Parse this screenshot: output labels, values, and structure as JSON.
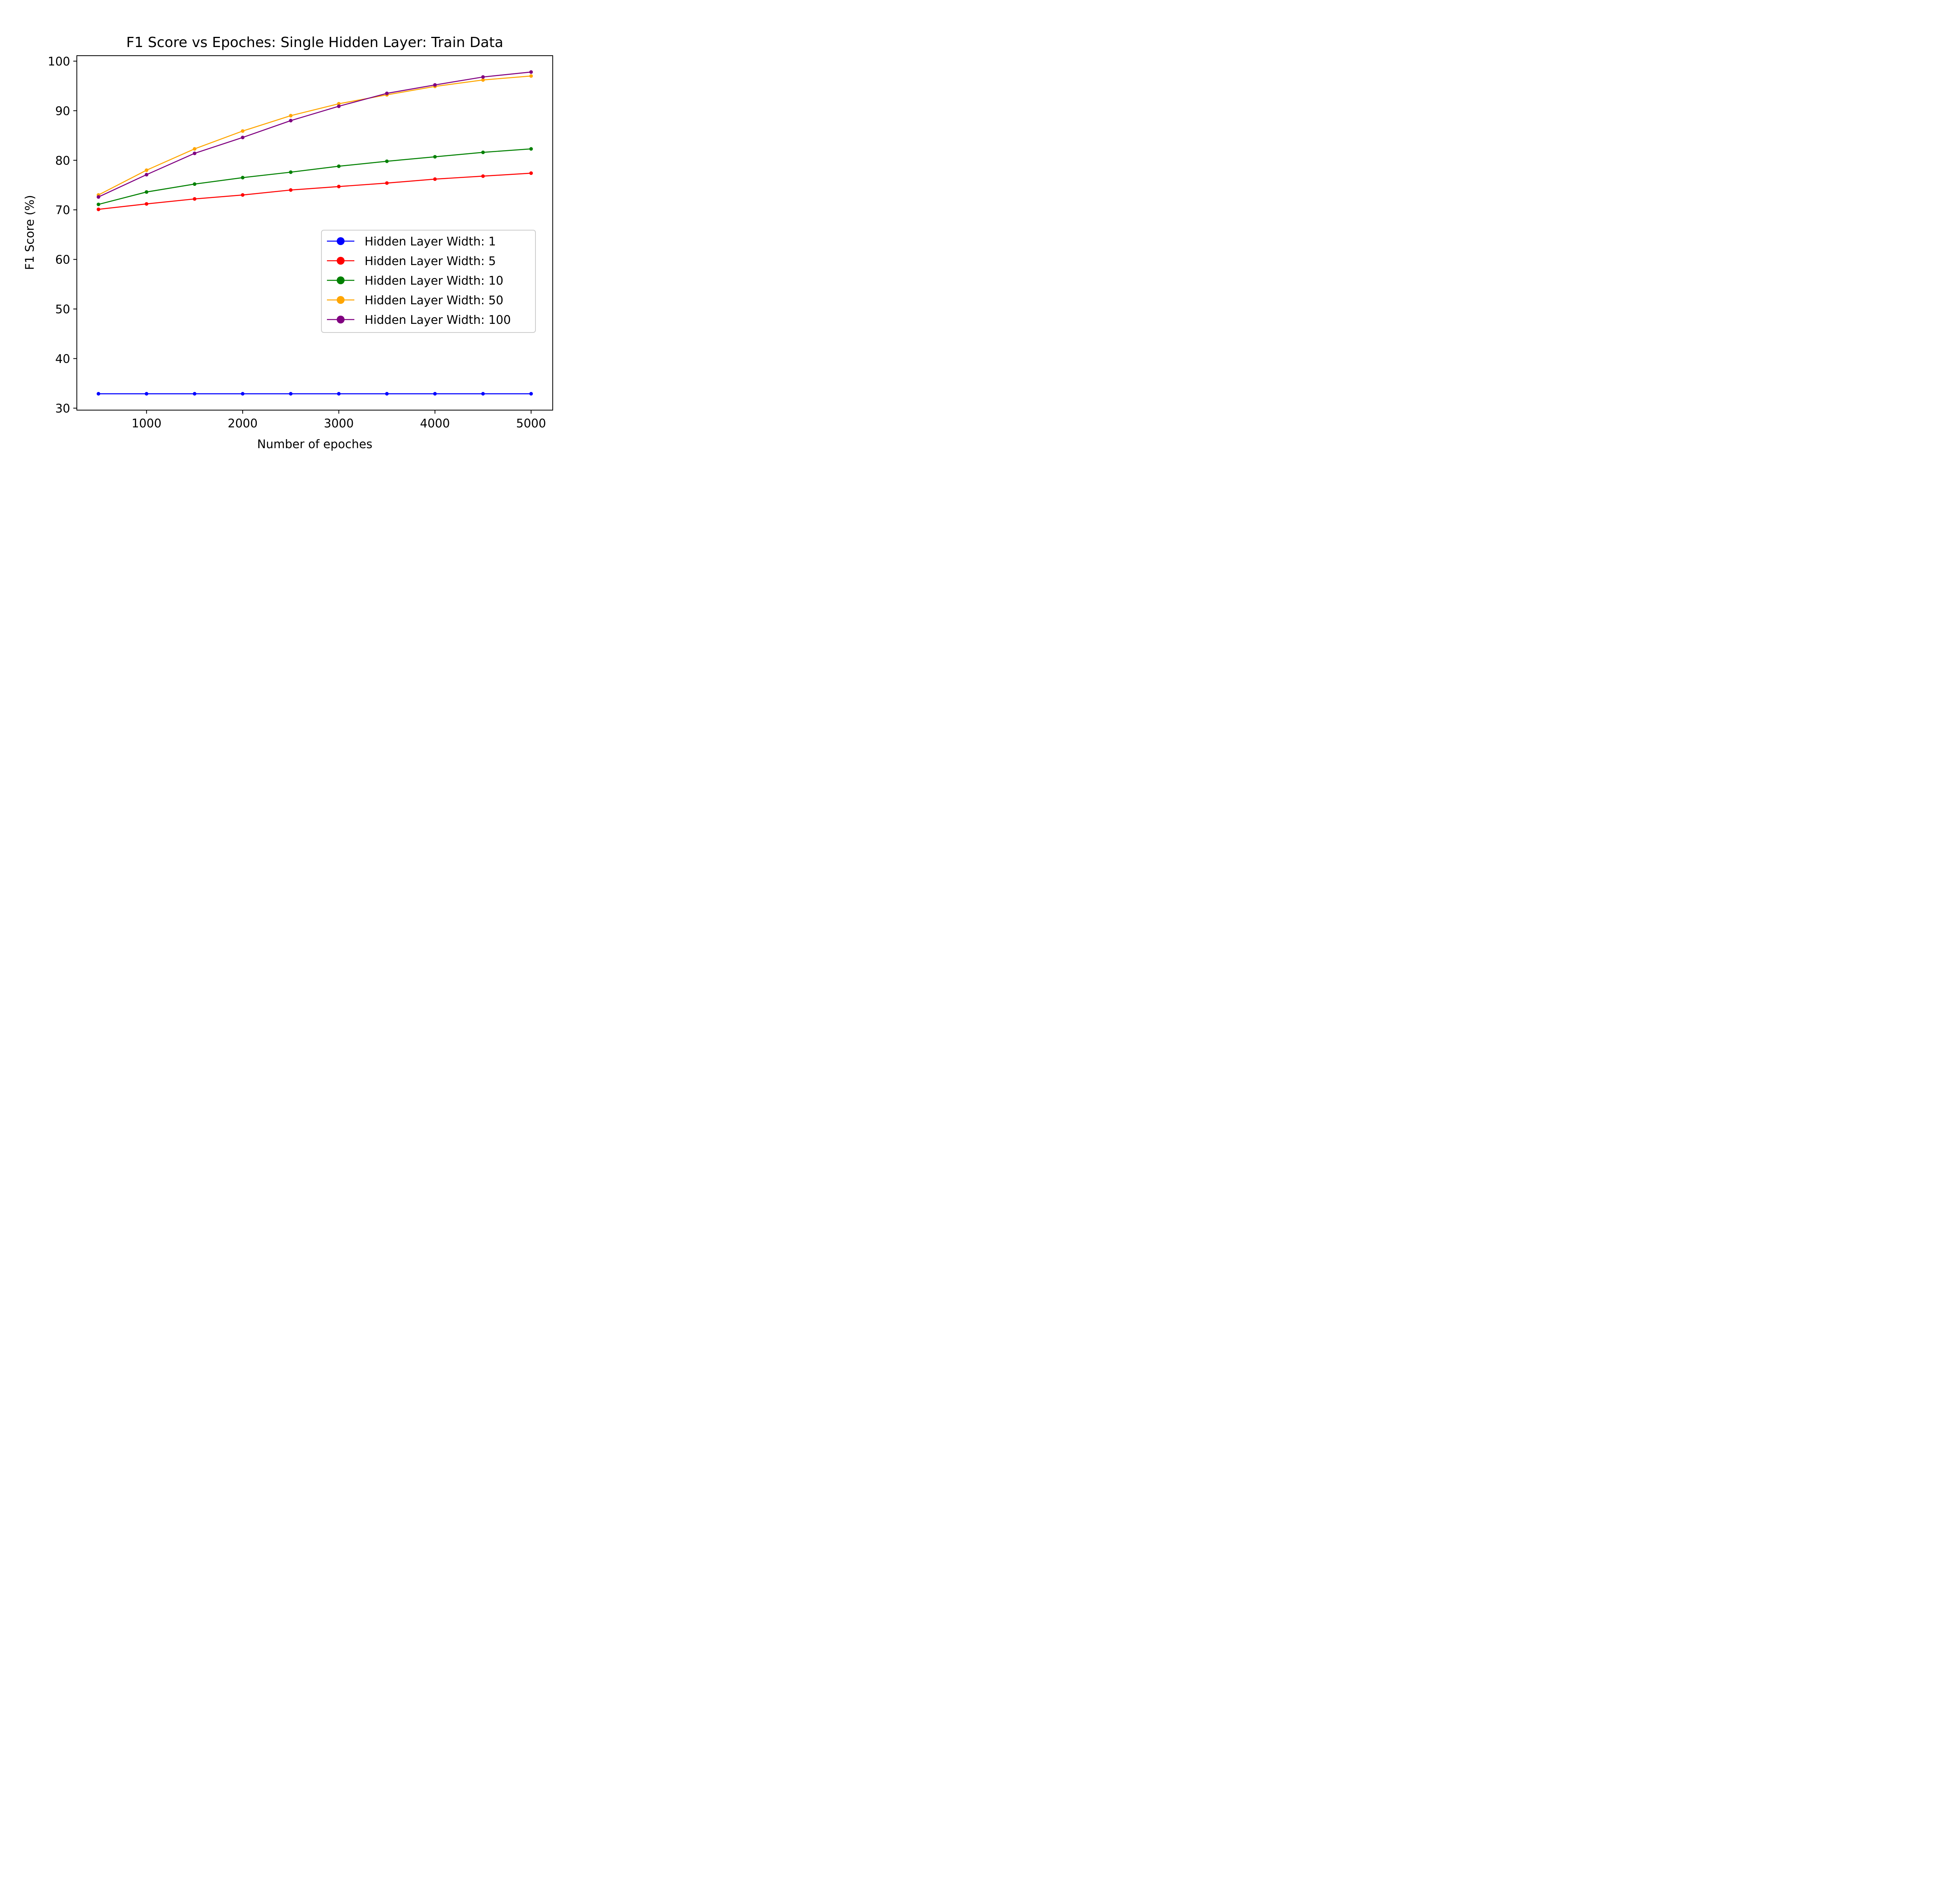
{
  "chart_data": {
    "type": "line",
    "title": "F1 Score vs Epoches: Single Hidden Layer: Train Data",
    "xlabel": "Number of epoches",
    "ylabel": "F1 Score (%)",
    "x": [
      500,
      1000,
      1500,
      2000,
      2500,
      3000,
      3500,
      4000,
      4500,
      5000
    ],
    "xlim": [
      275,
      5225
    ],
    "ylim": [
      29.6,
      101.1
    ],
    "xticks": [
      1000,
      2000,
      3000,
      4000,
      5000
    ],
    "yticks": [
      30,
      40,
      50,
      60,
      70,
      80,
      90,
      100
    ],
    "grid": false,
    "legend_position": "center-right",
    "series": [
      {
        "name": "Hidden Layer Width: 1",
        "color": "#0000ff",
        "values": [
          32.9,
          32.9,
          32.9,
          32.9,
          32.9,
          32.9,
          32.9,
          32.9,
          32.9,
          32.9
        ]
      },
      {
        "name": "Hidden Layer Width: 5",
        "color": "#ff0000",
        "values": [
          70.1,
          71.2,
          72.2,
          73.0,
          74.0,
          74.7,
          75.4,
          76.2,
          76.8,
          77.4
        ]
      },
      {
        "name": "Hidden Layer Width: 10",
        "color": "#008000",
        "values": [
          71.1,
          73.6,
          75.2,
          76.5,
          77.6,
          78.8,
          79.8,
          80.7,
          81.6,
          82.3
        ]
      },
      {
        "name": "Hidden Layer Width: 50",
        "color": "#ffa500",
        "values": [
          73.0,
          78.0,
          82.3,
          85.9,
          89.0,
          91.4,
          93.2,
          94.9,
          96.2,
          97.0
        ]
      },
      {
        "name": "Hidden Layer Width: 100",
        "color": "#800080",
        "values": [
          72.6,
          77.1,
          81.4,
          84.6,
          88.0,
          90.9,
          93.5,
          95.2,
          96.8,
          97.8
        ]
      }
    ]
  }
}
